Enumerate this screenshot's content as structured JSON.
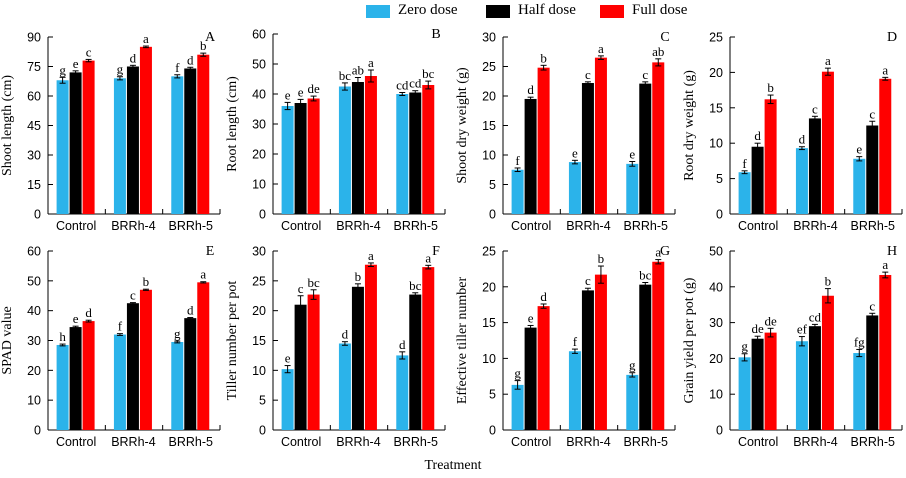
{
  "legend": [
    {
      "name": "Zero dose",
      "color": "#2bb3ea"
    },
    {
      "name": "Half dose",
      "color": "#000000"
    },
    {
      "name": "Full dose",
      "color": "#ff0000"
    }
  ],
  "xlabel": "Treatment",
  "chart_data": [
    {
      "type": "bar",
      "panel": "A",
      "categories": [
        "Control",
        "BRRh-4",
        "BRRh-5"
      ],
      "ylabel": "Shoot length (cm)",
      "ylim": [
        0,
        90
      ],
      "yticks": [
        0,
        15,
        30,
        45,
        60,
        75,
        90
      ],
      "series": [
        {
          "name": "Zero dose",
          "values": [
            68,
            69,
            70
          ],
          "err": [
            1.5,
            0.8,
            0.8
          ],
          "letters": [
            "g",
            "g",
            "f"
          ]
        },
        {
          "name": "Half dose",
          "values": [
            72,
            75,
            74
          ],
          "err": [
            0.8,
            0.6,
            0.6
          ],
          "letters": [
            "e",
            "d",
            "d"
          ]
        },
        {
          "name": "Full dose",
          "values": [
            78,
            85,
            81
          ],
          "err": [
            0.6,
            0.4,
            0.8
          ],
          "letters": [
            "c",
            "a",
            "b"
          ]
        }
      ]
    },
    {
      "type": "bar",
      "panel": "B",
      "categories": [
        "Control",
        "BRRh-4",
        "BRRh-5"
      ],
      "ylabel": "Root length (cm)",
      "ylim": [
        0,
        60
      ],
      "yticks": [
        0,
        10,
        20,
        30,
        40,
        50,
        60
      ],
      "series": [
        {
          "name": "Zero dose",
          "values": [
            36,
            42.5,
            40
          ],
          "err": [
            1.2,
            1.2,
            0.5
          ],
          "letters": [
            "e",
            "bc",
            "cd"
          ]
        },
        {
          "name": "Half dose",
          "values": [
            37,
            44,
            40.5
          ],
          "err": [
            1.2,
            1.5,
            0.6
          ],
          "letters": [
            "e",
            "ab",
            "cd"
          ]
        },
        {
          "name": "Full dose",
          "values": [
            38.5,
            46,
            43
          ],
          "err": [
            0.8,
            2,
            1.3
          ],
          "letters": [
            "de",
            "a",
            "bc"
          ]
        }
      ]
    },
    {
      "type": "bar",
      "panel": "C",
      "categories": [
        "Control",
        "BRRh-4",
        "BRRh-5"
      ],
      "ylabel": "Shoot dry weight (g)",
      "ylim": [
        0,
        30
      ],
      "yticks": [
        0,
        5,
        10,
        15,
        20,
        25,
        30
      ],
      "series": [
        {
          "name": "Zero dose",
          "values": [
            7.5,
            8.8,
            8.5
          ],
          "err": [
            0.3,
            0.3,
            0.4
          ],
          "letters": [
            "f",
            "e",
            "e"
          ]
        },
        {
          "name": "Half dose",
          "values": [
            19.5,
            22.2,
            22.1
          ],
          "err": [
            0.3,
            0.2,
            0.3
          ],
          "letters": [
            "d",
            "c",
            "c"
          ]
        },
        {
          "name": "Full dose",
          "values": [
            24.8,
            26.5,
            25.7
          ],
          "err": [
            0.4,
            0.3,
            0.6
          ],
          "letters": [
            "b",
            "a",
            "ab"
          ]
        }
      ]
    },
    {
      "type": "bar",
      "panel": "D",
      "categories": [
        "Control",
        "BRRh-4",
        "BRRh-5"
      ],
      "ylabel": "Root dry weight (g)",
      "ylim": [
        0,
        25
      ],
      "yticks": [
        0,
        5,
        10,
        15,
        20,
        25
      ],
      "series": [
        {
          "name": "Zero dose",
          "values": [
            5.9,
            9.3,
            7.8
          ],
          "err": [
            0.2,
            0.2,
            0.3
          ],
          "letters": [
            "f",
            "d",
            "e"
          ]
        },
        {
          "name": "Half dose",
          "values": [
            9.5,
            13.5,
            12.5
          ],
          "err": [
            0.5,
            0.3,
            0.6
          ],
          "letters": [
            "d",
            "c",
            "c"
          ]
        },
        {
          "name": "Full dose",
          "values": [
            16.2,
            20.1,
            19.1
          ],
          "err": [
            0.6,
            0.5,
            0.2
          ],
          "letters": [
            "b",
            "a",
            "a"
          ]
        }
      ]
    },
    {
      "type": "bar",
      "panel": "E",
      "categories": [
        "Control",
        "BRRh-4",
        "BRRh-5"
      ],
      "ylabel": "SPAD value",
      "ylim": [
        0,
        60
      ],
      "yticks": [
        0,
        10,
        20,
        30,
        40,
        50,
        60
      ],
      "series": [
        {
          "name": "Zero dose",
          "values": [
            28.5,
            32,
            29.5
          ],
          "err": [
            0.3,
            0.3,
            0.3
          ],
          "letters": [
            "h",
            "f",
            "g"
          ]
        },
        {
          "name": "Half dose",
          "values": [
            34.5,
            42.5,
            37.5
          ],
          "err": [
            0.3,
            0.2,
            0.2
          ],
          "letters": [
            "e",
            "c",
            "d"
          ]
        },
        {
          "name": "Full dose",
          "values": [
            36.5,
            47,
            49.5
          ],
          "err": [
            0.3,
            0.2,
            0.2
          ],
          "letters": [
            "d",
            "b",
            "a"
          ]
        }
      ]
    },
    {
      "type": "bar",
      "panel": "F",
      "categories": [
        "Control",
        "BRRh-4",
        "BRRh-5"
      ],
      "ylabel": "Tiller number per pot",
      "ylim": [
        0,
        30
      ],
      "yticks": [
        0,
        5,
        10,
        15,
        20,
        25,
        30
      ],
      "series": [
        {
          "name": "Zero dose",
          "values": [
            10.2,
            14.5,
            12.5
          ],
          "err": [
            0.6,
            0.3,
            0.6
          ],
          "letters": [
            "e",
            "d",
            "d"
          ]
        },
        {
          "name": "Half dose",
          "values": [
            21,
            24,
            22.7
          ],
          "err": [
            1.5,
            0.5,
            0.3
          ],
          "letters": [
            "c",
            "b",
            "bc"
          ]
        },
        {
          "name": "Full dose",
          "values": [
            22.7,
            27.7,
            27.3
          ],
          "err": [
            0.8,
            0.3,
            0.3
          ],
          "letters": [
            "bc",
            "a",
            "a"
          ]
        }
      ]
    },
    {
      "type": "bar",
      "panel": "G",
      "categories": [
        "Control",
        "BRRh-4",
        "BRRh-5"
      ],
      "ylabel": "Effective tiller number",
      "ylim": [
        0,
        25
      ],
      "yticks": [
        0,
        5,
        10,
        15,
        20,
        25
      ],
      "series": [
        {
          "name": "Zero dose",
          "values": [
            6.3,
            11,
            7.7
          ],
          "err": [
            0.6,
            0.3,
            0.3
          ],
          "letters": [
            "g",
            "f",
            "g"
          ]
        },
        {
          "name": "Half dose",
          "values": [
            14.3,
            19.5,
            20.3
          ],
          "err": [
            0.3,
            0.3,
            0.3
          ],
          "letters": [
            "e",
            "c",
            "bc"
          ]
        },
        {
          "name": "Full dose",
          "values": [
            17.3,
            21.7,
            23.5
          ],
          "err": [
            0.3,
            1.2,
            0.3
          ],
          "letters": [
            "d",
            "b",
            "a"
          ]
        }
      ]
    },
    {
      "type": "bar",
      "panel": "H",
      "categories": [
        "Control",
        "BRRh-4",
        "BRRh-5"
      ],
      "ylabel": "Grain yield per pot (g)",
      "ylim": [
        0,
        50
      ],
      "yticks": [
        0,
        10,
        20,
        30,
        40,
        50
      ],
      "series": [
        {
          "name": "Zero dose",
          "values": [
            20.3,
            24.8,
            21.5
          ],
          "err": [
            1,
            1.3,
            1
          ],
          "letters": [
            "g",
            "ef",
            "fg"
          ]
        },
        {
          "name": "Half dose",
          "values": [
            25.5,
            29,
            32
          ],
          "err": [
            0.7,
            0.5,
            0.6
          ],
          "letters": [
            "de",
            "cd",
            "c"
          ]
        },
        {
          "name": "Full dose",
          "values": [
            27.2,
            37.5,
            43.3
          ],
          "err": [
            1.2,
            2,
            0.8
          ],
          "letters": [
            "de",
            "b",
            "a"
          ]
        }
      ]
    }
  ]
}
